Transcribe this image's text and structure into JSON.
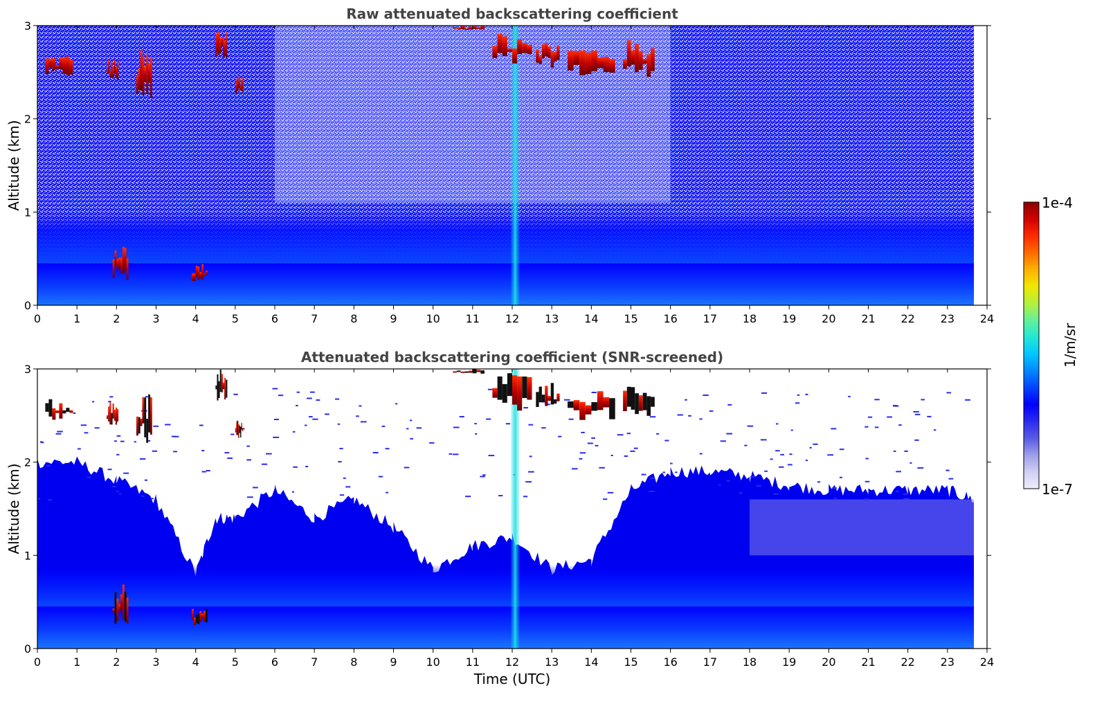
{
  "chart_data": [
    {
      "type": "heatmap",
      "title": "Raw attenuated backscattering coefficient",
      "xlabel": "",
      "ylabel": "Altitude (km)",
      "xlim": [
        0,
        24
      ],
      "ylim": [
        0,
        3
      ],
      "xticks": [
        "0",
        "1",
        "2",
        "3",
        "4",
        "5",
        "6",
        "7",
        "8",
        "9",
        "10",
        "11",
        "12",
        "13",
        "14",
        "15",
        "16",
        "17",
        "18",
        "19",
        "20",
        "21",
        "22",
        "23",
        "24"
      ],
      "yticks": [
        "0",
        "1",
        "2",
        "3"
      ],
      "data_end_time": 23.67,
      "colorscale": "jet",
      "log_scale": true,
      "features": [
        {
          "name": "boundary layer aerosol",
          "time_range": [
            0,
            23.67
          ],
          "altitude_range": [
            0,
            0.9
          ]
        },
        {
          "name": "clouds",
          "time_range": [
            0.2,
            0.9
          ],
          "altitude_range": [
            2.45,
            2.7
          ]
        },
        {
          "name": "clouds",
          "time_range": [
            1.75,
            2.05
          ],
          "altitude_range": [
            2.4,
            2.65
          ]
        },
        {
          "name": "clouds",
          "time_range": [
            2.5,
            2.9
          ],
          "altitude_range": [
            2.2,
            2.75
          ]
        },
        {
          "name": "clouds",
          "time_range": [
            4.5,
            4.8
          ],
          "altitude_range": [
            2.65,
            3.0
          ]
        },
        {
          "name": "clouds",
          "time_range": [
            5.0,
            5.2
          ],
          "altitude_range": [
            2.25,
            2.5
          ]
        },
        {
          "name": "clouds",
          "time_range": [
            10.5,
            15.6
          ],
          "altitude_range": [
            2.4,
            3.0
          ]
        },
        {
          "name": "low cloud tops",
          "time_range": [
            3.9,
            4.3
          ],
          "altitude_range": [
            0.25,
            0.45
          ]
        },
        {
          "name": "vertical streak",
          "time_range": [
            12.0,
            12.15
          ],
          "altitude_range": [
            0,
            3.0
          ]
        }
      ]
    },
    {
      "type": "heatmap",
      "title": "Attenuated backscattering coefficient (SNR-screened)",
      "xlabel": "Time (UTC)",
      "ylabel": "Altitude (km)",
      "xlim": [
        0,
        24
      ],
      "ylim": [
        0,
        3
      ],
      "xticks": [
        "0",
        "1",
        "2",
        "3",
        "4",
        "5",
        "6",
        "7",
        "8",
        "9",
        "10",
        "11",
        "12",
        "13",
        "14",
        "15",
        "16",
        "17",
        "18",
        "19",
        "20",
        "21",
        "22",
        "23",
        "24"
      ],
      "yticks": [
        "0",
        "1",
        "2",
        "3"
      ],
      "data_end_time": 23.67,
      "colorscale": "jet",
      "log_scale": true,
      "screened_top_km": [
        [
          0,
          2.0
        ],
        [
          1,
          2.0
        ],
        [
          2,
          1.8
        ],
        [
          3,
          1.6
        ],
        [
          4,
          0.8
        ],
        [
          4.5,
          1.4
        ],
        [
          5,
          1.4
        ],
        [
          6,
          1.7
        ],
        [
          7,
          1.4
        ],
        [
          8,
          1.6
        ],
        [
          9,
          1.3
        ],
        [
          10,
          0.85
        ],
        [
          11,
          1.1
        ],
        [
          12,
          1.2
        ],
        [
          13,
          0.85
        ],
        [
          14,
          0.95
        ],
        [
          15,
          1.7
        ],
        [
          16,
          1.9
        ],
        [
          17,
          1.9
        ],
        [
          18,
          1.85
        ],
        [
          19,
          1.75
        ],
        [
          20,
          1.7
        ],
        [
          21,
          1.7
        ],
        [
          22,
          1.7
        ],
        [
          23,
          1.7
        ],
        [
          23.67,
          1.6
        ]
      ]
    }
  ],
  "colorbar": {
    "label": "1/m/sr",
    "max_label": "1e-4",
    "min_label": "1e-7",
    "colors": [
      "#eeeefc",
      "#cfcff5",
      "#9d9de9",
      "#5a5ae6",
      "#2a2af0",
      "#0000ff",
      "#0044ff",
      "#0088ff",
      "#00c8ff",
      "#22e8d6",
      "#66f099",
      "#b4f03e",
      "#f0e800",
      "#ffb000",
      "#ff6a00",
      "#ff2a00",
      "#d00000",
      "#8b0000"
    ]
  }
}
